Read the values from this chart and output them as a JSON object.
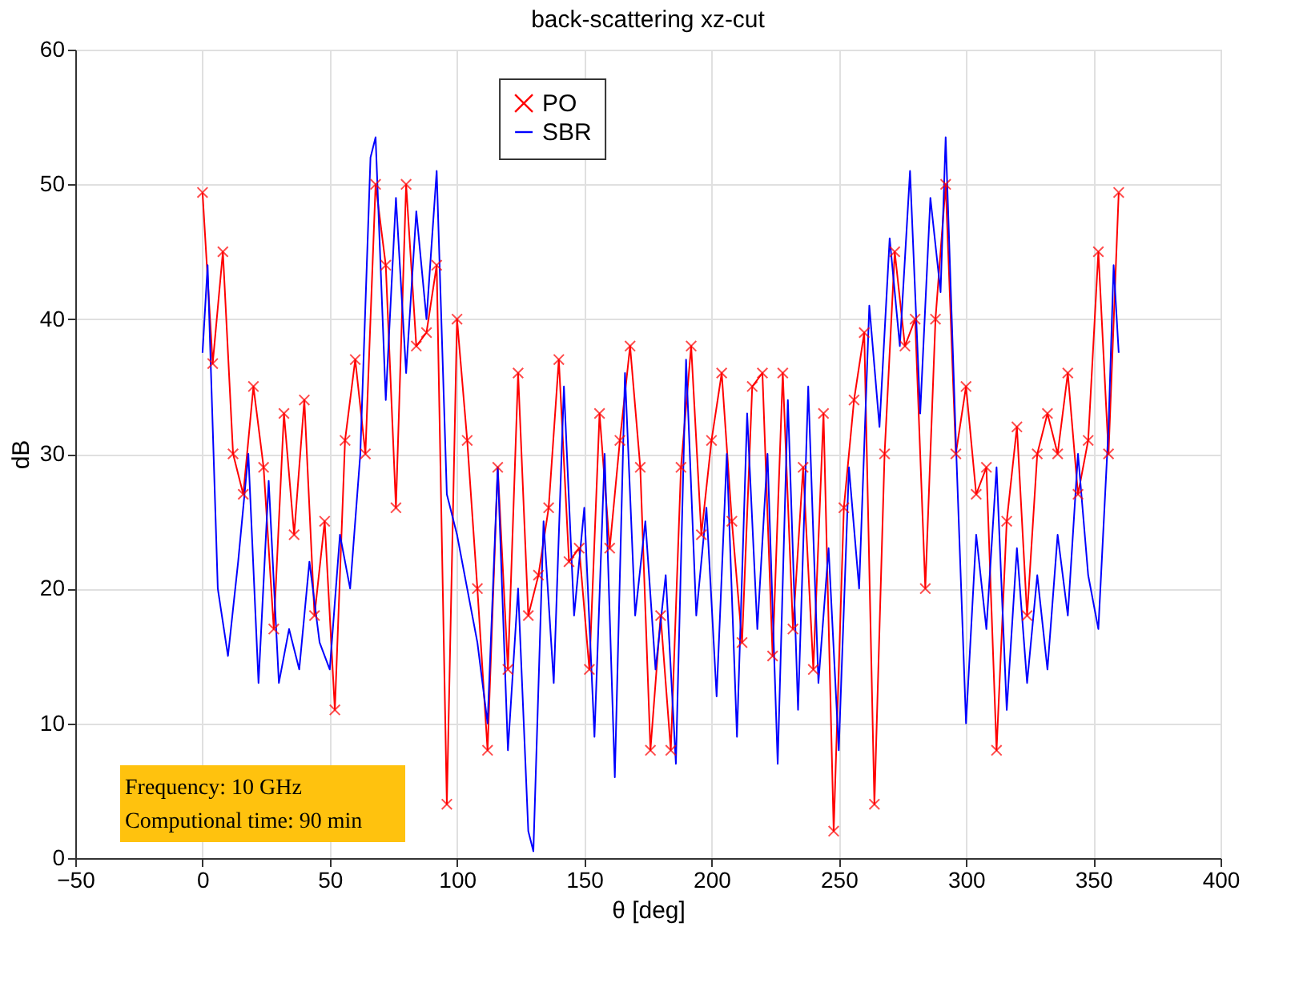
{
  "chart_data": {
    "type": "line",
    "title": "back-scattering xz-cut",
    "xlabel": "θ [deg]",
    "ylabel": "dB",
    "xlim": [
      -50,
      400
    ],
    "xticks": [
      -50,
      0,
      50,
      100,
      150,
      200,
      250,
      300,
      350,
      400
    ],
    "ylim": [
      0,
      60
    ],
    "yticks": [
      0,
      10,
      20,
      30,
      40,
      50,
      60
    ],
    "grid": true,
    "legend": "top",
    "annotations": [
      "Frequency: 10 GHz",
      "Computional time: 90 min"
    ],
    "series": [
      {
        "name": "PO",
        "color": "#ff0000",
        "marker": "cross",
        "x": [
          0,
          4,
          8,
          12,
          16,
          20,
          24,
          28,
          32,
          36,
          40,
          44,
          48,
          52,
          56,
          60,
          64,
          68,
          72,
          76,
          80,
          84,
          88,
          92,
          96,
          100,
          104,
          108,
          112,
          116,
          120,
          124,
          128,
          132,
          136,
          140,
          144,
          148,
          152,
          156,
          160,
          164,
          168,
          172,
          176,
          180,
          184,
          188,
          192,
          196,
          200,
          204,
          208,
          212,
          216,
          220,
          224,
          228,
          232,
          236,
          240,
          244,
          248,
          252,
          256,
          260,
          264,
          268,
          272,
          276,
          280,
          284,
          288,
          292,
          296,
          300,
          304,
          308,
          312,
          316,
          320,
          324,
          328,
          332,
          336,
          340,
          344,
          348,
          352,
          356,
          360
        ],
        "values": [
          49.4,
          36.7,
          45,
          30,
          27,
          35,
          29,
          17,
          33,
          24,
          34,
          18,
          25,
          11,
          31,
          37,
          30,
          50,
          44,
          26,
          50,
          38,
          39,
          44,
          4,
          40,
          31,
          20,
          8,
          29,
          14,
          36,
          18,
          21,
          26,
          37,
          22,
          23,
          14,
          33,
          23,
          31,
          38,
          29,
          8,
          18,
          8,
          29,
          38,
          24,
          31,
          36,
          25,
          16,
          35,
          36,
          15,
          36,
          17,
          29,
          14,
          33,
          2,
          26,
          34,
          39,
          4,
          30,
          45,
          38,
          40,
          20,
          40,
          50,
          30,
          35,
          27,
          29,
          8,
          25,
          32,
          18,
          30,
          33,
          30,
          36,
          27,
          31,
          45,
          30,
          49.4
        ]
      },
      {
        "name": "SBR",
        "color": "#0000ff",
        "marker": "none",
        "x": [
          0,
          2,
          6,
          10,
          14,
          18,
          22,
          26,
          30,
          34,
          38,
          42,
          46,
          50,
          54,
          58,
          62,
          66,
          68,
          72,
          76,
          80,
          84,
          88,
          92,
          96,
          100,
          104,
          108,
          112,
          116,
          120,
          124,
          128,
          130,
          134,
          138,
          142,
          146,
          150,
          154,
          158,
          162,
          166,
          170,
          174,
          178,
          182,
          186,
          190,
          194,
          198,
          202,
          206,
          210,
          214,
          218,
          222,
          226,
          230,
          234,
          238,
          242,
          246,
          250,
          254,
          258,
          262,
          266,
          270,
          274,
          278,
          282,
          286,
          290,
          292,
          296,
          300,
          304,
          308,
          312,
          316,
          320,
          324,
          328,
          332,
          336,
          340,
          344,
          348,
          352,
          356,
          358,
          360
        ],
        "values": [
          37.5,
          44,
          20,
          15,
          22,
          30,
          13,
          28,
          13,
          17,
          14,
          22,
          16,
          14,
          24,
          20,
          30,
          52,
          53.5,
          34,
          49,
          36,
          48,
          40,
          51,
          27,
          24,
          20,
          16,
          10,
          29,
          8,
          20,
          2,
          0.5,
          25,
          13,
          35,
          18,
          26,
          9,
          30,
          6,
          36,
          18,
          25,
          14,
          21,
          7,
          37,
          18,
          26,
          12,
          30,
          9,
          33,
          17,
          30,
          7,
          34,
          11,
          35,
          13,
          23,
          8,
          29,
          20,
          41,
          32,
          46,
          38,
          51,
          33,
          49,
          42,
          53.5,
          31,
          10,
          24,
          17,
          29,
          11,
          23,
          13,
          21,
          14,
          24,
          18,
          30,
          21,
          17,
          32,
          44,
          37.5
        ]
      }
    ]
  }
}
